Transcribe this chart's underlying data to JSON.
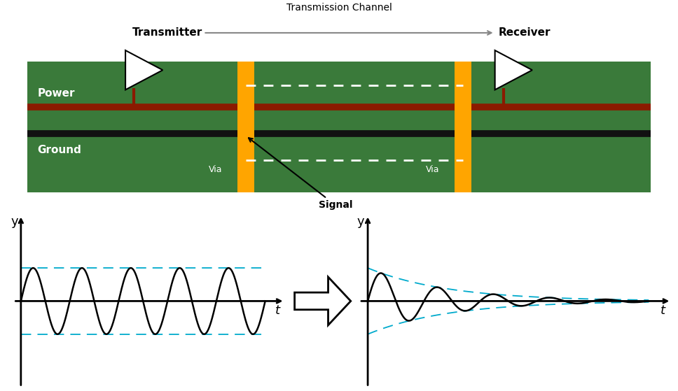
{
  "title": "Transmission Channel",
  "title_fontsize": 10,
  "board_color": "#3a7a3a",
  "power_line_color": "#8B1A00",
  "ground_line_color": "#111111",
  "via_color": "#FFA500",
  "signal_label": "Signal",
  "transmitter_label": "Transmitter",
  "receiver_label": "Receiver",
  "power_label": "Power",
  "ground_label": "Ground",
  "via_label": "Via",
  "envelope_color": "#00AACC",
  "wave_freq": 5,
  "wave_amp": 1.0,
  "decay_alpha": 0.35,
  "num_points": 1000
}
